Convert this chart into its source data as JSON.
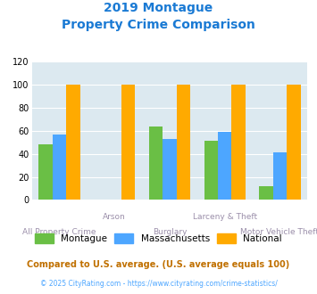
{
  "title_line1": "2019 Montague",
  "title_line2": "Property Crime Comparison",
  "categories": [
    "All Property Crime",
    "Arson",
    "Burglary",
    "Larceny & Theft",
    "Motor Vehicle Theft"
  ],
  "series": {
    "Montague": [
      48,
      null,
      64,
      51,
      12
    ],
    "Massachusetts": [
      57,
      null,
      53,
      59,
      41
    ],
    "National": [
      100,
      100,
      100,
      100,
      100
    ]
  },
  "colors": {
    "Montague": "#6abf45",
    "Massachusetts": "#4da6ff",
    "National": "#ffaa00"
  },
  "ylim": [
    0,
    120
  ],
  "yticks": [
    0,
    20,
    40,
    60,
    80,
    100,
    120
  ],
  "bar_width": 0.25,
  "background_color": "#dce9f0",
  "title_color": "#1a7ad4",
  "xlabel_color": "#9b8faa",
  "footnote1": "Compared to U.S. average. (U.S. average equals 100)",
  "footnote2": "© 2025 CityRating.com - https://www.cityrating.com/crime-statistics/",
  "footnote1_color": "#c07000",
  "footnote2_color": "#4da6ff"
}
